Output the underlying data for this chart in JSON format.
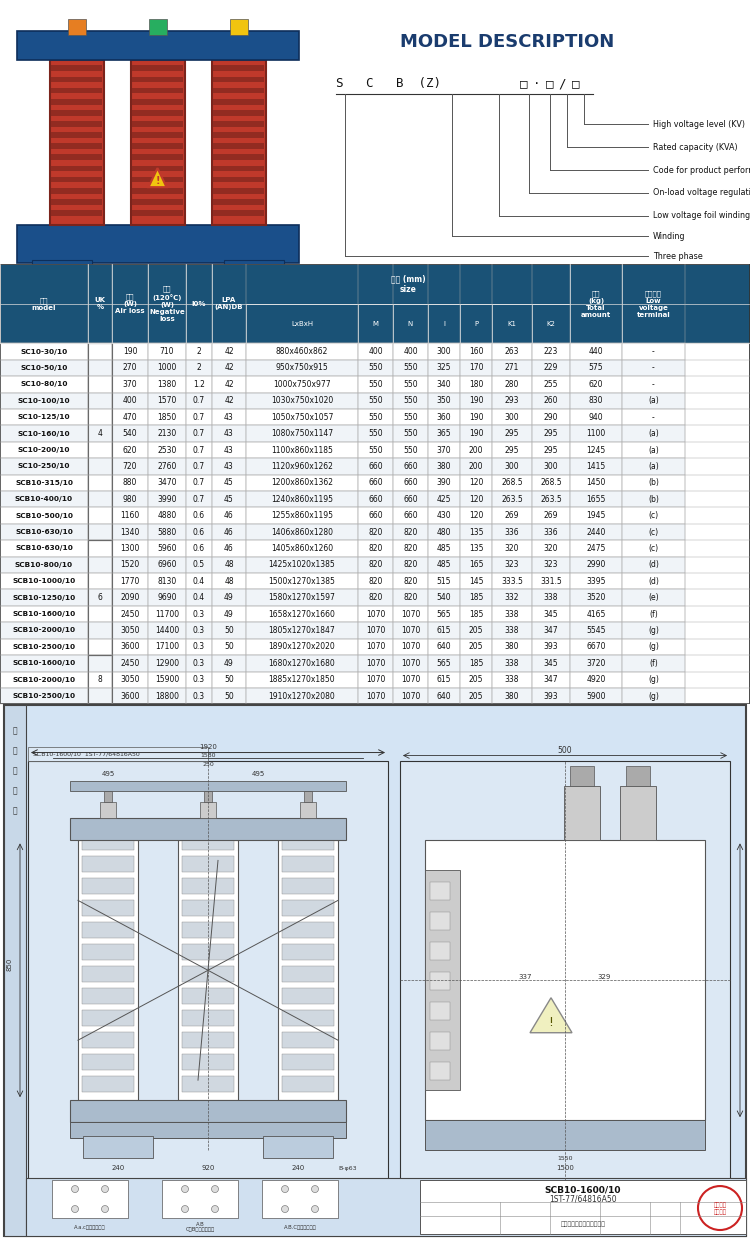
{
  "title": "MODEL DESCRIPTION",
  "model_labels": [
    "High voltage level (KV)",
    "Rated capacity (KVA)",
    "Code for product performance",
    "On-load voltage regulation",
    "Low voltage foil winding",
    "Winding",
    "Three phase"
  ],
  "header_bg": "#1a5276",
  "header_text": "#ffffff",
  "bg_color": "#ffffff",
  "drawing_bg": "#d6e4f0",
  "rows": [
    [
      "SC10-30/10",
      "190",
      "710",
      "2",
      "42",
      "880x460x862",
      "400",
      "400",
      "300",
      "160",
      "263",
      "223",
      "440",
      "-"
    ],
    [
      "SC10-50/10",
      "270",
      "1000",
      "2",
      "42",
      "950x750x915",
      "550",
      "550",
      "325",
      "170",
      "271",
      "229",
      "575",
      "-"
    ],
    [
      "SC10-80/10",
      "370",
      "1380",
      "1.2",
      "42",
      "1000x750x977",
      "550",
      "550",
      "340",
      "180",
      "280",
      "255",
      "620",
      "-"
    ],
    [
      "SC10-100/10",
      "400",
      "1570",
      "0.7",
      "42",
      "1030x750x1020",
      "550",
      "550",
      "350",
      "190",
      "293",
      "260",
      "830",
      "(a)"
    ],
    [
      "SC10-125/10",
      "470",
      "1850",
      "0.7",
      "43",
      "1050x750x1057",
      "550",
      "550",
      "360",
      "190",
      "300",
      "290",
      "940",
      "-"
    ],
    [
      "SC10-160/10",
      "540",
      "2130",
      "0.7",
      "43",
      "1080x750x1147",
      "550",
      "550",
      "365",
      "190",
      "295",
      "295",
      "1100",
      "(a)"
    ],
    [
      "SC10-200/10",
      "620",
      "2530",
      "0.7",
      "43",
      "1100x860x1185",
      "550",
      "550",
      "370",
      "200",
      "295",
      "295",
      "1245",
      "(a)"
    ],
    [
      "SC10-250/10",
      "720",
      "2760",
      "0.7",
      "43",
      "1120x960x1262",
      "660",
      "660",
      "380",
      "200",
      "300",
      "300",
      "1415",
      "(a)"
    ],
    [
      "SCB10-315/10",
      "880",
      "3470",
      "0.7",
      "45",
      "1200x860x1362",
      "660",
      "660",
      "390",
      "120",
      "268.5",
      "268.5",
      "1450",
      "(b)"
    ],
    [
      "SCB10-400/10",
      "980",
      "3990",
      "0.7",
      "45",
      "1240x860x1195",
      "660",
      "660",
      "425",
      "120",
      "263.5",
      "263.5",
      "1655",
      "(b)"
    ],
    [
      "SCB10-500/10",
      "1160",
      "4880",
      "0.6",
      "46",
      "1255x860x1195",
      "660",
      "660",
      "430",
      "120",
      "269",
      "269",
      "1945",
      "(c)"
    ],
    [
      "SCB10-630/10",
      "1340",
      "5880",
      "0.6",
      "46",
      "1406x860x1280",
      "820",
      "820",
      "480",
      "135",
      "336",
      "336",
      "2440",
      "(c)"
    ],
    [
      "SCB10-630/10",
      "1300",
      "5960",
      "0.6",
      "46",
      "1405x860x1260",
      "820",
      "820",
      "485",
      "135",
      "320",
      "320",
      "2475",
      "(c)"
    ],
    [
      "SCB10-800/10",
      "1520",
      "6960",
      "0.5",
      "48",
      "1425x1020x1385",
      "820",
      "820",
      "485",
      "165",
      "323",
      "323",
      "2990",
      "(d)"
    ],
    [
      "SCB10-1000/10",
      "1770",
      "8130",
      "0.4",
      "48",
      "1500x1270x1385",
      "820",
      "820",
      "515",
      "145",
      "333.5",
      "331.5",
      "3395",
      "(d)"
    ],
    [
      "SCB10-1250/10",
      "2090",
      "9690",
      "0.4",
      "49",
      "1580x1270x1597",
      "820",
      "820",
      "540",
      "185",
      "332",
      "338",
      "3520",
      "(e)"
    ],
    [
      "SCB10-1600/10",
      "2450",
      "11700",
      "0.3",
      "49",
      "1658x1270x1660",
      "1070",
      "1070",
      "565",
      "185",
      "338",
      "345",
      "4165",
      "(f)"
    ],
    [
      "SCB10-2000/10",
      "3050",
      "14400",
      "0.3",
      "50",
      "1805x1270x1847",
      "1070",
      "1070",
      "615",
      "205",
      "338",
      "347",
      "5545",
      "(g)"
    ],
    [
      "SCB10-2500/10",
      "3600",
      "17100",
      "0.3",
      "50",
      "1890x1270x2020",
      "1070",
      "1070",
      "640",
      "205",
      "380",
      "393",
      "6670",
      "(g)"
    ],
    [
      "SCB10-1600/10",
      "2450",
      "12900",
      "0.3",
      "49",
      "1680x1270x1680",
      "1070",
      "1070",
      "565",
      "185",
      "338",
      "345",
      "3720",
      "(f)"
    ],
    [
      "SCB10-2000/10",
      "3050",
      "15900",
      "0.3",
      "50",
      "1885x1270x1850",
      "1070",
      "1070",
      "615",
      "205",
      "338",
      "347",
      "4920",
      "(g)"
    ],
    [
      "SCB10-2500/10",
      "3600",
      "18800",
      "0.3",
      "50",
      "1910x1270x2080",
      "1070",
      "1070",
      "640",
      "205",
      "380",
      "393",
      "5900",
      "(g)"
    ]
  ],
  "uk_groups": [
    {
      "value": "4",
      "start": 0,
      "end": 11
    },
    {
      "value": "6",
      "start": 12,
      "end": 18
    },
    {
      "value": "8",
      "start": 19,
      "end": 21
    }
  ]
}
